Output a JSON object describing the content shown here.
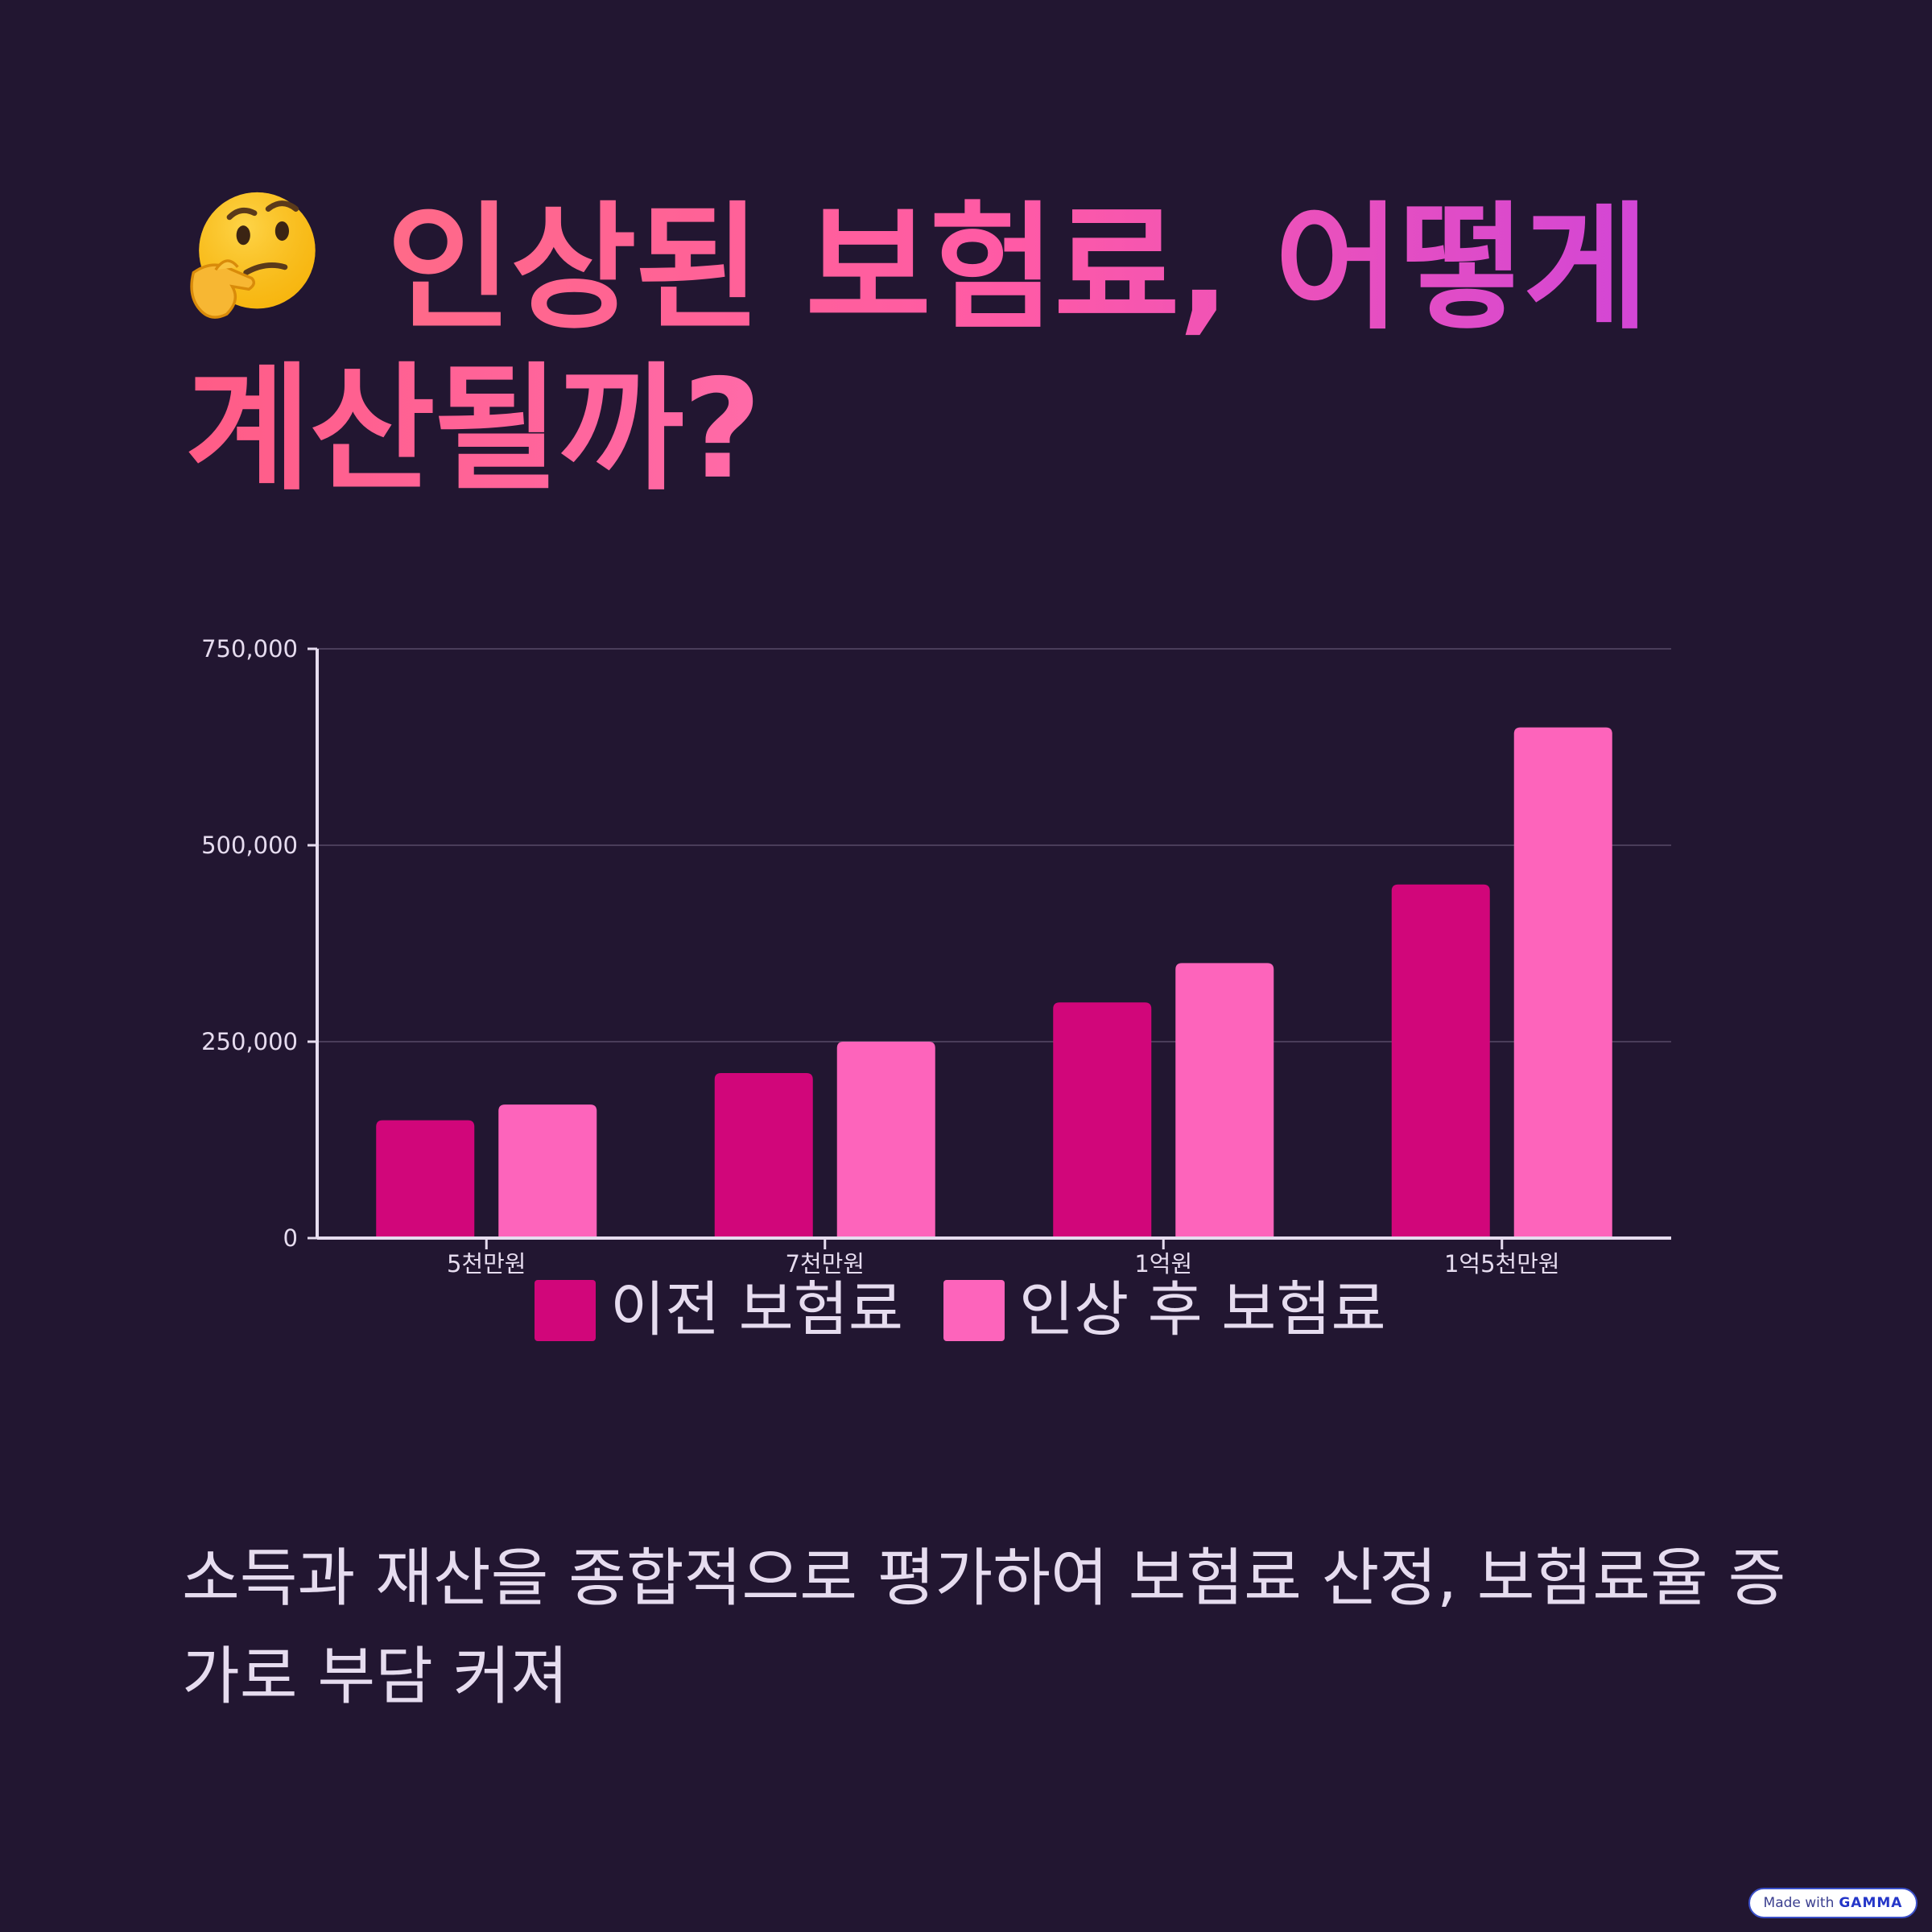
{
  "title": {
    "line1": "인상된 보험료, 어떻게",
    "line2": "계산될까?",
    "emoji_icon": "thinking-face-icon"
  },
  "chart_data": {
    "type": "bar",
    "categories": [
      "5천만원",
      "7천만원",
      "1억원",
      "1억5천만원"
    ],
    "series": [
      {
        "name": "이전 보험료",
        "values": [
          150000,
          210000,
          300000,
          450000
        ],
        "color": "#d1067a"
      },
      {
        "name": "인상 후 보험료",
        "values": [
          170000,
          250000,
          350000,
          650000
        ],
        "color": "#fd64bb"
      }
    ],
    "yticks": [
      "0",
      "250,000",
      "500,000",
      "750,000"
    ],
    "ylim": [
      0,
      750000
    ],
    "grid": true,
    "legend": "bottom",
    "title": "",
    "xlabel": "",
    "ylabel": ""
  },
  "body": {
    "text": "소득과 재산을 종합적으로 평가하여 보험료 산정, 보험료율 증가로 부담 커져"
  },
  "badge": {
    "prefix": "Made with",
    "brand": "GAMMA"
  }
}
